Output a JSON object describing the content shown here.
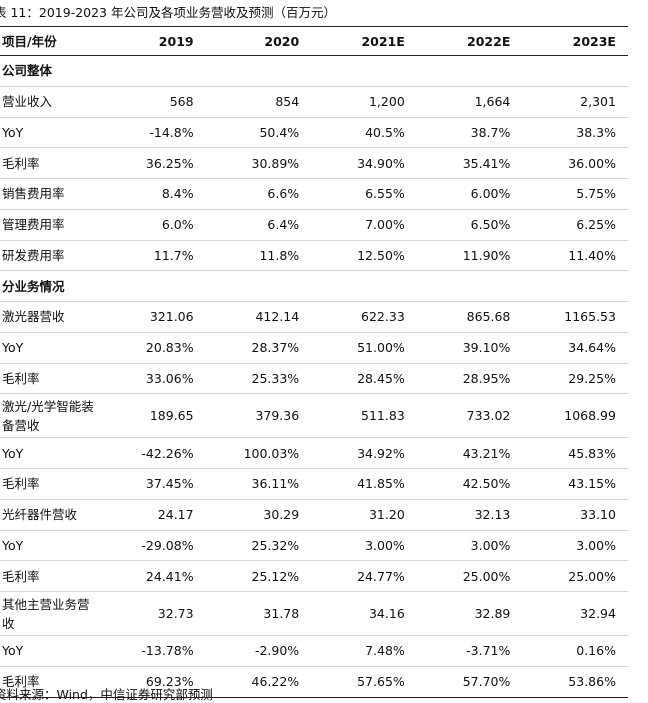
{
  "caption": "表 11：2019-2023 年公司及各项业务营收及预测（百万元）",
  "header": [
    "项目/年份",
    "2019",
    "2020",
    "2021E",
    "2022E",
    "2023E"
  ],
  "sections": [
    {
      "title": "公司整体",
      "rows": [
        {
          "label": "营业收入",
          "values": [
            "568",
            "854",
            "1,200",
            "1,664",
            "2,301"
          ]
        },
        {
          "label": "YoY",
          "values": [
            "-14.8%",
            "50.4%",
            "40.5%",
            "38.7%",
            "38.3%"
          ]
        },
        {
          "label": "毛利率",
          "values": [
            "36.25%",
            "30.89%",
            "34.90%",
            "35.41%",
            "36.00%"
          ]
        },
        {
          "label": "销售费用率",
          "values": [
            "8.4%",
            "6.6%",
            "6.55%",
            "6.00%",
            "5.75%"
          ]
        },
        {
          "label": "管理费用率",
          "values": [
            "6.0%",
            "6.4%",
            "7.00%",
            "6.50%",
            "6.25%"
          ]
        },
        {
          "label": "研发费用率",
          "values": [
            "11.7%",
            "11.8%",
            "12.50%",
            "11.90%",
            "11.40%"
          ]
        }
      ]
    },
    {
      "title": "分业务情况",
      "rows": [
        {
          "label": "激光器营收",
          "values": [
            "321.06",
            "412.14",
            "622.33",
            "865.68",
            "1165.53"
          ]
        },
        {
          "label": "YoY",
          "values": [
            "20.83%",
            "28.37%",
            "51.00%",
            "39.10%",
            "34.64%"
          ]
        },
        {
          "label": "毛利率",
          "values": [
            "33.06%",
            "25.33%",
            "28.45%",
            "28.95%",
            "29.25%"
          ]
        },
        {
          "label": "激光/光学智能装备营收",
          "tall": true,
          "values": [
            "189.65",
            "379.36",
            "511.83",
            "733.02",
            "1068.99"
          ]
        },
        {
          "label": "YoY",
          "values": [
            "-42.26%",
            "100.03%",
            "34.92%",
            "43.21%",
            "45.83%"
          ]
        },
        {
          "label": "毛利率",
          "values": [
            "37.45%",
            "36.11%",
            "41.85%",
            "42.50%",
            "43.15%"
          ]
        },
        {
          "label": "光纤器件营收",
          "values": [
            "24.17",
            "30.29",
            "31.20",
            "32.13",
            "33.10"
          ]
        },
        {
          "label": "YoY",
          "values": [
            "-29.08%",
            "25.32%",
            "3.00%",
            "3.00%",
            "3.00%"
          ]
        },
        {
          "label": "毛利率",
          "values": [
            "24.41%",
            "25.12%",
            "24.77%",
            "25.00%",
            "25.00%"
          ]
        },
        {
          "label": "其他主营业务营收",
          "tall": true,
          "values": [
            "32.73",
            "31.78",
            "34.16",
            "32.89",
            "32.94"
          ]
        },
        {
          "label": "YoY",
          "values": [
            "-13.78%",
            "-2.90%",
            "7.48%",
            "-3.71%",
            "0.16%"
          ]
        },
        {
          "label": "毛利率",
          "values": [
            "69.23%",
            "46.22%",
            "57.65%",
            "57.70%",
            "53.86%"
          ]
        }
      ]
    }
  ],
  "source": "资料来源：Wind，中信证券研究部预测"
}
